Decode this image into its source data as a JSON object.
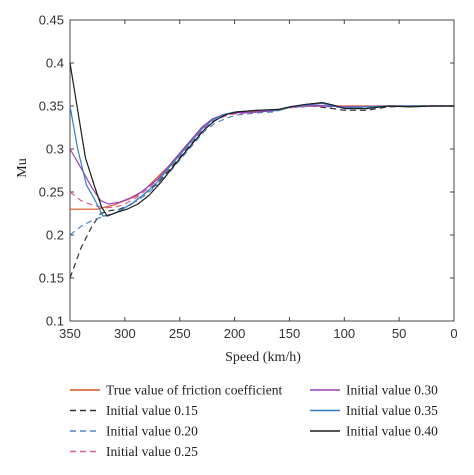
{
  "chart_data": {
    "type": "line",
    "xlabel": "Speed (km/h)",
    "ylabel": "Mu",
    "xlim": [
      350,
      0
    ],
    "ylim": [
      0.1,
      0.45
    ],
    "x_ticks": [
      350,
      300,
      250,
      200,
      150,
      100,
      50,
      0
    ],
    "y_ticks": [
      0.1,
      0.15,
      0.2,
      0.25,
      0.3,
      0.35,
      0.4,
      0.45
    ],
    "grid": false,
    "legend_position": "bottom",
    "series": [
      {
        "name": "True value of friction coefficient",
        "color": "#d9541e",
        "dash": "solid",
        "points": [
          [
            350,
            0.23
          ],
          [
            325,
            0.23
          ],
          [
            310,
            0.235
          ],
          [
            300,
            0.24
          ],
          [
            290,
            0.245
          ],
          [
            280,
            0.255
          ],
          [
            260,
            0.28
          ],
          [
            250,
            0.295
          ],
          [
            240,
            0.31
          ],
          [
            230,
            0.325
          ],
          [
            220,
            0.335
          ],
          [
            210,
            0.34
          ],
          [
            200,
            0.342
          ],
          [
            180,
            0.344
          ],
          [
            160,
            0.346
          ],
          [
            150,
            0.349
          ],
          [
            130,
            0.35
          ],
          [
            110,
            0.35
          ],
          [
            90,
            0.35
          ],
          [
            70,
            0.35
          ],
          [
            50,
            0.35
          ],
          [
            30,
            0.35
          ],
          [
            0,
            0.35
          ]
        ]
      },
      {
        "name": "Initial value 0.15",
        "color": "#333333",
        "dash": "dashed",
        "points": [
          [
            350,
            0.15
          ],
          [
            340,
            0.185
          ],
          [
            330,
            0.21
          ],
          [
            322,
            0.225
          ],
          [
            315,
            0.228
          ],
          [
            305,
            0.23
          ],
          [
            295,
            0.235
          ],
          [
            285,
            0.245
          ],
          [
            270,
            0.26
          ],
          [
            260,
            0.275
          ],
          [
            250,
            0.29
          ],
          [
            240,
            0.305
          ],
          [
            230,
            0.32
          ],
          [
            220,
            0.332
          ],
          [
            210,
            0.338
          ],
          [
            200,
            0.341
          ],
          [
            180,
            0.343
          ],
          [
            160,
            0.345
          ],
          [
            150,
            0.348
          ],
          [
            130,
            0.35
          ],
          [
            110,
            0.347
          ],
          [
            100,
            0.345
          ],
          [
            80,
            0.345
          ],
          [
            60,
            0.349
          ],
          [
            40,
            0.35
          ],
          [
            20,
            0.35
          ],
          [
            0,
            0.35
          ]
        ]
      },
      {
        "name": "Initial value 0.20",
        "color": "#4a86c8",
        "dash": "dashed",
        "points": [
          [
            350,
            0.2
          ],
          [
            340,
            0.21
          ],
          [
            328,
            0.218
          ],
          [
            318,
            0.222
          ],
          [
            308,
            0.226
          ],
          [
            298,
            0.233
          ],
          [
            285,
            0.243
          ],
          [
            270,
            0.258
          ],
          [
            258,
            0.275
          ],
          [
            248,
            0.29
          ],
          [
            238,
            0.305
          ],
          [
            228,
            0.32
          ],
          [
            218,
            0.33
          ],
          [
            205,
            0.337
          ],
          [
            195,
            0.34
          ],
          [
            180,
            0.342
          ],
          [
            165,
            0.343
          ],
          [
            150,
            0.348
          ],
          [
            130,
            0.35
          ],
          [
            110,
            0.349
          ],
          [
            90,
            0.348
          ],
          [
            70,
            0.349
          ],
          [
            50,
            0.35
          ],
          [
            30,
            0.35
          ],
          [
            0,
            0.35
          ]
        ]
      },
      {
        "name": "Initial value 0.25",
        "color": "#d55fa0",
        "dash": "dashed",
        "points": [
          [
            350,
            0.25
          ],
          [
            340,
            0.24
          ],
          [
            330,
            0.235
          ],
          [
            320,
            0.232
          ],
          [
            310,
            0.232
          ],
          [
            300,
            0.236
          ],
          [
            290,
            0.243
          ],
          [
            278,
            0.255
          ],
          [
            265,
            0.27
          ],
          [
            255,
            0.285
          ],
          [
            245,
            0.3
          ],
          [
            235,
            0.315
          ],
          [
            225,
            0.327
          ],
          [
            215,
            0.335
          ],
          [
            205,
            0.34
          ],
          [
            190,
            0.342
          ],
          [
            170,
            0.344
          ],
          [
            150,
            0.348
          ],
          [
            130,
            0.35
          ],
          [
            110,
            0.35
          ],
          [
            90,
            0.349
          ],
          [
            70,
            0.35
          ],
          [
            50,
            0.35
          ],
          [
            30,
            0.35
          ],
          [
            0,
            0.35
          ]
        ]
      },
      {
        "name": "Initial value 0.30",
        "color": "#9a3fb8",
        "dash": "solid",
        "points": [
          [
            350,
            0.3
          ],
          [
            340,
            0.278
          ],
          [
            330,
            0.255
          ],
          [
            322,
            0.24
          ],
          [
            315,
            0.236
          ],
          [
            305,
            0.238
          ],
          [
            295,
            0.243
          ],
          [
            285,
            0.25
          ],
          [
            270,
            0.265
          ],
          [
            260,
            0.28
          ],
          [
            250,
            0.295
          ],
          [
            240,
            0.31
          ],
          [
            230,
            0.325
          ],
          [
            220,
            0.335
          ],
          [
            210,
            0.34
          ],
          [
            200,
            0.342
          ],
          [
            180,
            0.343
          ],
          [
            160,
            0.345
          ],
          [
            150,
            0.349
          ],
          [
            130,
            0.351
          ],
          [
            115,
            0.35
          ],
          [
            100,
            0.349
          ],
          [
            80,
            0.349
          ],
          [
            60,
            0.35
          ],
          [
            40,
            0.35
          ],
          [
            20,
            0.35
          ],
          [
            0,
            0.35
          ]
        ]
      },
      {
        "name": "Initial value 0.35",
        "color": "#2f7fc8",
        "dash": "solid",
        "points": [
          [
            350,
            0.35
          ],
          [
            343,
            0.3
          ],
          [
            335,
            0.258
          ],
          [
            327,
            0.24
          ],
          [
            320,
            0.222
          ],
          [
            312,
            0.224
          ],
          [
            302,
            0.23
          ],
          [
            292,
            0.238
          ],
          [
            282,
            0.248
          ],
          [
            270,
            0.262
          ],
          [
            260,
            0.278
          ],
          [
            250,
            0.293
          ],
          [
            240,
            0.308
          ],
          [
            230,
            0.323
          ],
          [
            220,
            0.334
          ],
          [
            210,
            0.34
          ],
          [
            200,
            0.343
          ],
          [
            180,
            0.345
          ],
          [
            160,
            0.345
          ],
          [
            150,
            0.349
          ],
          [
            130,
            0.352
          ],
          [
            120,
            0.353
          ],
          [
            110,
            0.35
          ],
          [
            100,
            0.348
          ],
          [
            80,
            0.349
          ],
          [
            60,
            0.35
          ],
          [
            40,
            0.35
          ],
          [
            20,
            0.35
          ],
          [
            0,
            0.35
          ]
        ]
      },
      {
        "name": "Initial value 0.40",
        "color": "#1e1e1e",
        "dash": "solid",
        "points": [
          [
            350,
            0.4
          ],
          [
            343,
            0.345
          ],
          [
            336,
            0.29
          ],
          [
            328,
            0.258
          ],
          [
            321,
            0.232
          ],
          [
            316,
            0.222
          ],
          [
            308,
            0.226
          ],
          [
            298,
            0.23
          ],
          [
            288,
            0.236
          ],
          [
            278,
            0.246
          ],
          [
            268,
            0.26
          ],
          [
            258,
            0.276
          ],
          [
            248,
            0.292
          ],
          [
            238,
            0.307
          ],
          [
            228,
            0.322
          ],
          [
            218,
            0.333
          ],
          [
            208,
            0.34
          ],
          [
            198,
            0.343
          ],
          [
            180,
            0.345
          ],
          [
            160,
            0.346
          ],
          [
            150,
            0.349
          ],
          [
            135,
            0.352
          ],
          [
            120,
            0.354
          ],
          [
            110,
            0.351
          ],
          [
            100,
            0.347
          ],
          [
            80,
            0.347
          ],
          [
            60,
            0.35
          ],
          [
            40,
            0.349
          ],
          [
            20,
            0.35
          ],
          [
            0,
            0.35
          ]
        ]
      }
    ]
  }
}
